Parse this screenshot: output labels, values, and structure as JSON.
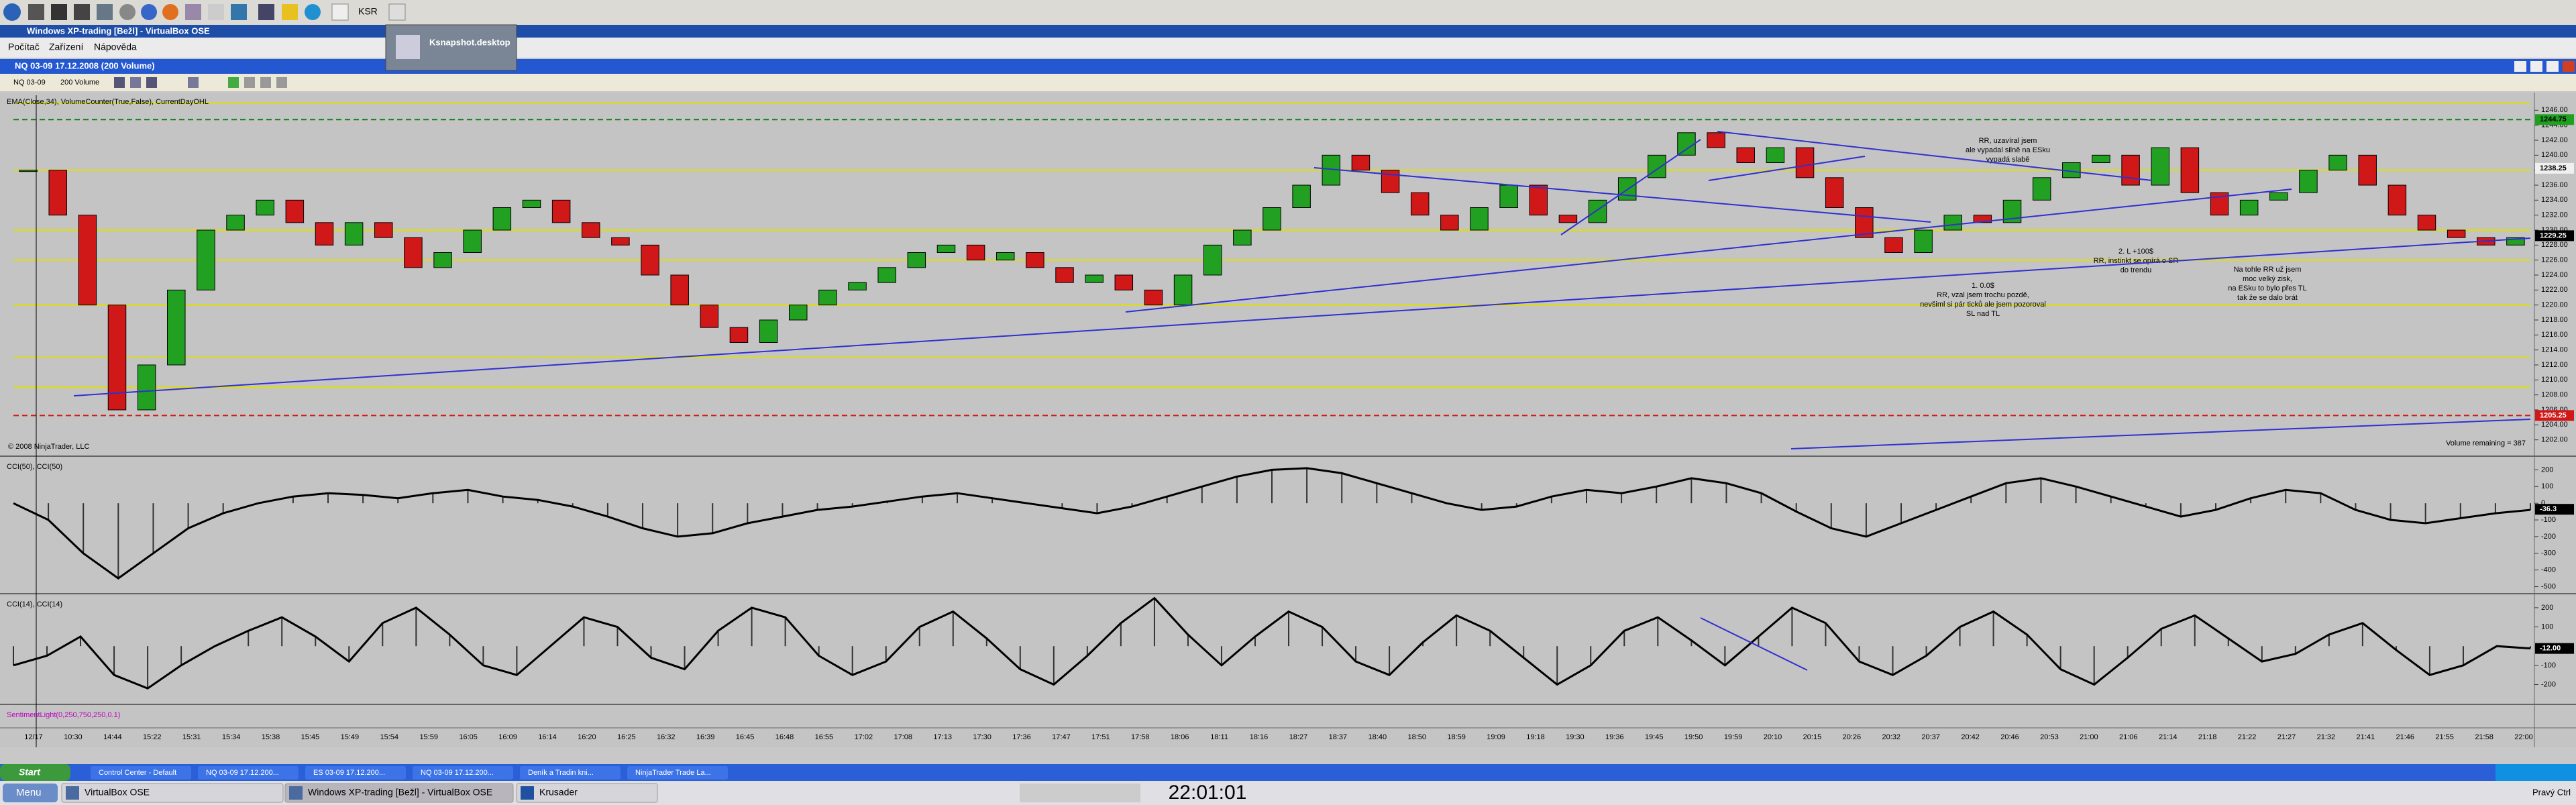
{
  "top_panel": {
    "label": "KSR"
  },
  "tooltip": "Ksnapshot.desktop",
  "vbox": {
    "title": "Windows XP-trading [Bežl] - VirtualBox OSE",
    "menu": [
      "Počítač",
      "Zařízení",
      "Nápověda"
    ]
  },
  "window": {
    "title": "NQ 03-09  17.12.2008 (200 Volume)",
    "toolbar": [
      "NQ 03-09",
      "200 Volume"
    ]
  },
  "chart_data": [
    {
      "type": "candlestick",
      "title": "EMA(Close,34), VolumeCounter(True,False), CurrentDayOHL",
      "values": [
        1238,
        1232,
        1220,
        1206,
        1212,
        1222,
        1230,
        1232,
        1234,
        1231,
        1228,
        1231,
        1229,
        1225,
        1227,
        1230,
        1233,
        1234,
        1231,
        1229,
        1228,
        1224,
        1220,
        1217,
        1215,
        1218,
        1220,
        1222,
        1223,
        1225,
        1227,
        1228,
        1226,
        1227,
        1225,
        1223,
        1224,
        1222,
        1220,
        1224,
        1228,
        1230,
        1233,
        1236,
        1240,
        1238,
        1235,
        1232,
        1230,
        1233,
        1236,
        1232,
        1231,
        1234,
        1237,
        1240,
        1243,
        1241,
        1239,
        1241,
        1237,
        1233,
        1229,
        1227,
        1230,
        1232,
        1231,
        1234,
        1237,
        1239,
        1240,
        1236,
        1241,
        1235,
        1232,
        1234,
        1235,
        1238,
        1240,
        1236,
        1232,
        1230,
        1229,
        1228,
        1229
      ],
      "up_color": "#22a022",
      "down_color": "#d01818",
      "ylim": [
        1200,
        1248
      ],
      "yticks": [
        {
          "value": 1246,
          "label": "1246.00"
        },
        {
          "value": 1244,
          "label": "1244.00"
        },
        {
          "value": 1242,
          "label": "1242.00"
        },
        {
          "value": 1240,
          "label": "1240.00"
        },
        {
          "value": 1238,
          "label": "1238.00"
        },
        {
          "value": 1236,
          "label": "1236.00"
        },
        {
          "value": 1234,
          "label": "1234.00"
        },
        {
          "value": 1232,
          "label": "1232.00"
        },
        {
          "value": 1230,
          "label": "1230.00"
        },
        {
          "value": 1228,
          "label": "1228.00"
        },
        {
          "value": 1226,
          "label": "1226.00"
        },
        {
          "value": 1224,
          "label": "1224.00"
        },
        {
          "value": 1222,
          "label": "1222.00"
        },
        {
          "value": 1220,
          "label": "1220.00"
        },
        {
          "value": 1218,
          "label": "1218.00"
        },
        {
          "value": 1216,
          "label": "1216.00"
        },
        {
          "value": 1214,
          "label": "1214.00"
        },
        {
          "value": 1212,
          "label": "1212.00"
        },
        {
          "value": 1210,
          "label": "1210.00"
        },
        {
          "value": 1208,
          "label": "1208.00"
        },
        {
          "value": 1206,
          "label": "1206.00"
        },
        {
          "value": 1204,
          "label": "1204.00"
        },
        {
          "value": 1202,
          "label": "1202.00"
        }
      ],
      "levels": [
        {
          "value": 1247,
          "color": "#e0e000"
        },
        {
          "value": 1244.75,
          "color": "#108010",
          "dash": true
        },
        {
          "value": 1238,
          "color": "#e0e000"
        },
        {
          "value": 1230,
          "color": "#e0e000"
        },
        {
          "value": 1226,
          "color": "#e0e000"
        },
        {
          "value": 1220,
          "color": "#e0e000"
        },
        {
          "value": 1213,
          "color": "#e0e000"
        },
        {
          "value": 1209,
          "color": "#e0e000"
        },
        {
          "value": 1205.25,
          "color": "#d01818",
          "dash": true
        }
      ],
      "markers": [
        {
          "value": 1244.75,
          "label": "1244.75",
          "color": "#20a020"
        },
        {
          "value": 1238.25,
          "label": "1238.25",
          "color": "#f0f0f0"
        },
        {
          "value": 1229.25,
          "label": "1229.25",
          "color": "#000000"
        },
        {
          "value": 1205.25,
          "label": "1205.25",
          "color": "#d01818"
        }
      ]
    },
    {
      "type": "cci",
      "title": "CCI(50), CCI(50)",
      "values": [
        0,
        -100,
        -300,
        -450,
        -300,
        -150,
        -60,
        0,
        40,
        60,
        50,
        30,
        60,
        80,
        40,
        20,
        -20,
        -80,
        -150,
        -200,
        -180,
        -120,
        -80,
        -40,
        -20,
        10,
        40,
        60,
        30,
        0,
        -30,
        -60,
        -20,
        40,
        100,
        160,
        200,
        210,
        180,
        120,
        60,
        0,
        -40,
        -20,
        40,
        80,
        60,
        100,
        150,
        120,
        60,
        -50,
        -150,
        -200,
        -120,
        -40,
        40,
        120,
        150,
        100,
        40,
        -20,
        -80,
        -40,
        30,
        80,
        60,
        -40,
        -100,
        -120,
        -90,
        -60,
        -40
      ],
      "ylim": [
        -530,
        270
      ],
      "yticks": [
        200,
        100,
        0,
        -100,
        -200,
        -300,
        -400,
        -500
      ],
      "markers": [
        {
          "value": -36.3,
          "label": "-36.3",
          "color": "#000000"
        }
      ]
    },
    {
      "type": "cci",
      "title": "CCI(14), CCI(14)",
      "values": [
        -100,
        -50,
        50,
        -150,
        -220,
        -100,
        0,
        80,
        150,
        50,
        -80,
        120,
        200,
        60,
        -100,
        -150,
        0,
        150,
        100,
        -60,
        -120,
        80,
        200,
        150,
        -50,
        -150,
        -80,
        100,
        180,
        40,
        -120,
        -200,
        -50,
        120,
        250,
        60,
        -100,
        50,
        180,
        100,
        -80,
        -150,
        20,
        160,
        80,
        -60,
        -200,
        -100,
        80,
        150,
        30,
        -100,
        50,
        200,
        120,
        -80,
        -150,
        -50,
        100,
        180,
        60,
        -120,
        -200,
        -60,
        90,
        160,
        40,
        -80,
        -40,
        60,
        120,
        -20,
        -150,
        -100,
        0,
        -12
      ],
      "ylim": [
        -296,
        259
      ],
      "yticks": [
        200,
        100,
        -100,
        -200
      ],
      "markers": [
        {
          "value": -12,
          "label": "-12.00",
          "color": "#000000"
        }
      ]
    }
  ],
  "volume_label": "SentimentLight(0,250,750,250,0.1)",
  "time_axis": [
    "12/17",
    "10:30",
    "14:44",
    "15:22",
    "15:31",
    "15:34",
    "15:38",
    "15:45",
    "15:49",
    "15:54",
    "15:59",
    "16:05",
    "16:09",
    "16:14",
    "16:20",
    "16:25",
    "16:32",
    "16:39",
    "16:45",
    "16:48",
    "16:55",
    "17:02",
    "17:08",
    "17:13",
    "17:30",
    "17:36",
    "17:47",
    "17:51",
    "17:58",
    "18:06",
    "18:11",
    "18:16",
    "18:27",
    "18:37",
    "18:40",
    "18:50",
    "18:59",
    "19:09",
    "19:18",
    "19:30",
    "19:36",
    "19:45",
    "19:50",
    "19:59",
    "20:10",
    "20:15",
    "20:26",
    "20:32",
    "20:37",
    "20:42",
    "20:46",
    "20:53",
    "21:00",
    "21:06",
    "21:14",
    "21:18",
    "21:22",
    "21:27",
    "21:32",
    "21:41",
    "21:46",
    "21:55",
    "21:58",
    "22:00"
  ],
  "copyright": "© 2008 NinjaTrader, LLC",
  "volume_remaining": "Volume remaining = 387",
  "annotations": [
    {
      "lines": [
        "RR, uzavíral jsem",
        "ale vypadal silně na ESku",
        "vypadá slabě"
      ]
    },
    {
      "lines": [
        "1. 0.0$",
        "RR, vzal jsem trochu pozdě,",
        "nevšiml si pár ticků ale jsem pozoroval",
        "SL nad TL"
      ]
    },
    {
      "lines": [
        "2. L +100$",
        "RR, instinkt se opírá o SR",
        "do trendu"
      ]
    },
    {
      "lines": [
        "Na tohle RR už jsem",
        "moc velký zisk,",
        "na ESku to bylo přes TL",
        "tak že se dalo brát"
      ]
    }
  ],
  "xp_taskbar": {
    "start": "Start",
    "items": [
      "Control Center - Default",
      "NQ 03-09 17.12.200...",
      "ES 03-09 17.12.200...",
      "NQ 03-09 17.12.200...",
      "Deník a Tradin kni...",
      "NinjaTrader Trade La..."
    ]
  },
  "bottom_panel": {
    "menu": "Menu",
    "items": [
      "VirtualBox OSE",
      "Windows XP-trading [Bežl] - VirtualBox OSE",
      "Krusader"
    ],
    "clock": "22:01:01",
    "keyboard": "Pravý Ctrl"
  }
}
